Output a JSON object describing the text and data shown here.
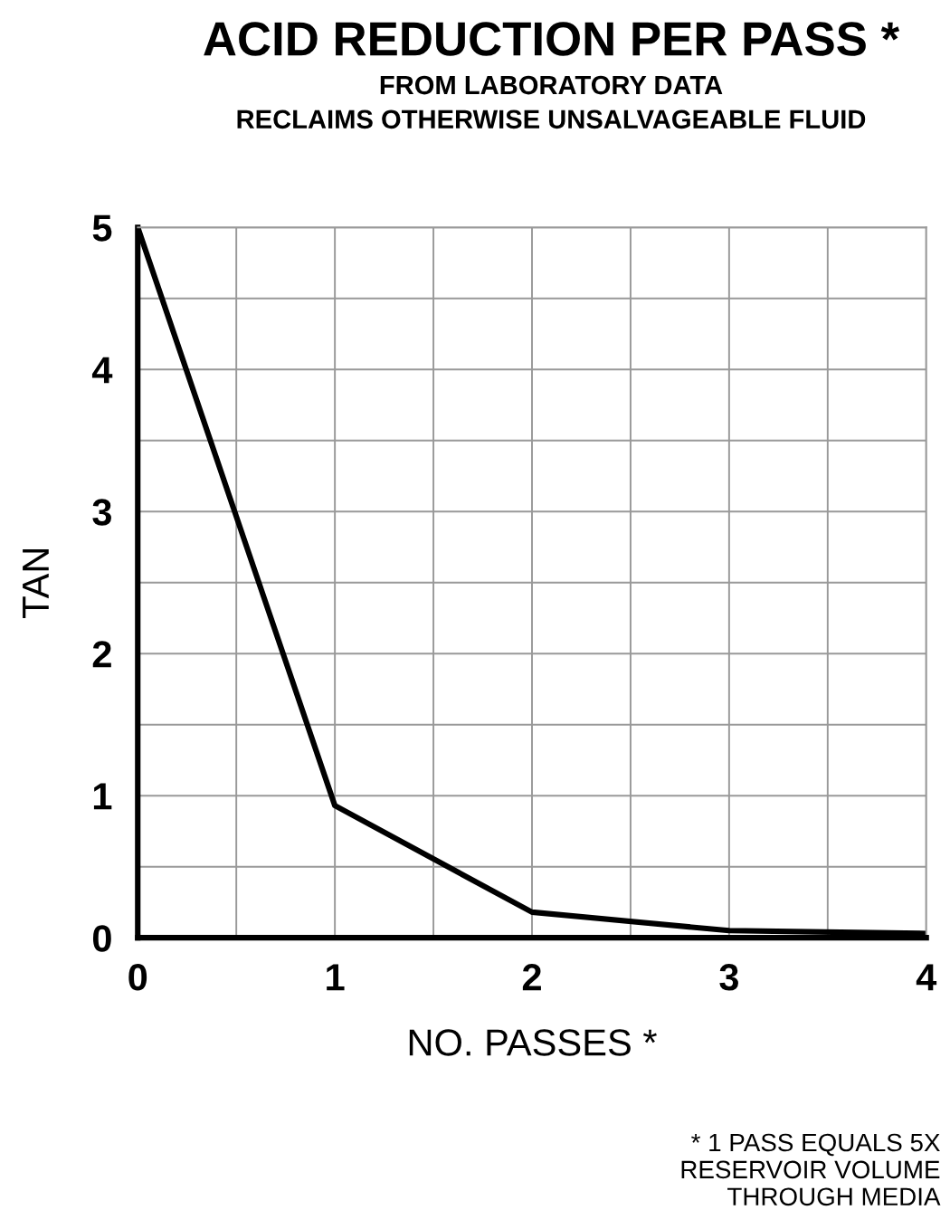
{
  "chart_data": {
    "type": "line",
    "title": "ACID REDUCTION PER PASS *",
    "subtitle": "FROM LABORATORY DATA\nRECLAIMS OTHERWISE UNSALVAGEABLE FLUID",
    "xlabel": "NO. PASSES *",
    "ylabel": "TAN",
    "x": [
      0,
      1,
      2,
      3,
      4
    ],
    "series": [
      {
        "color": "#000000",
        "values": [
          5,
          0.93,
          0.18,
          0.05,
          0.03
        ]
      }
    ],
    "xlim": [
      0,
      4
    ],
    "ylim": [
      0,
      5
    ],
    "xticks": [
      0,
      {
        "value": 0.5,
        "label": null
      },
      1,
      {
        "value": 1.5,
        "label": null
      },
      2,
      {
        "value": 2.5,
        "label": null
      },
      3,
      {
        "value": 3.5,
        "label": null
      },
      4
    ],
    "yticks": [
      0,
      {
        "value": 0.5,
        "label": null
      },
      1,
      {
        "value": 1.5,
        "label": null
      },
      2,
      {
        "value": 2.5,
        "label": null
      },
      3,
      {
        "value": 3.5,
        "label": null
      },
      4,
      {
        "value": 4.5,
        "label": null
      },
      5
    ],
    "grid": true,
    "marker": "none",
    "line_style": "solid",
    "annotations": [
      "* 1 PASS EQUALS 5X\nRESERVOIR VOLUME\nTHROUGH MEDIA"
    ]
  }
}
